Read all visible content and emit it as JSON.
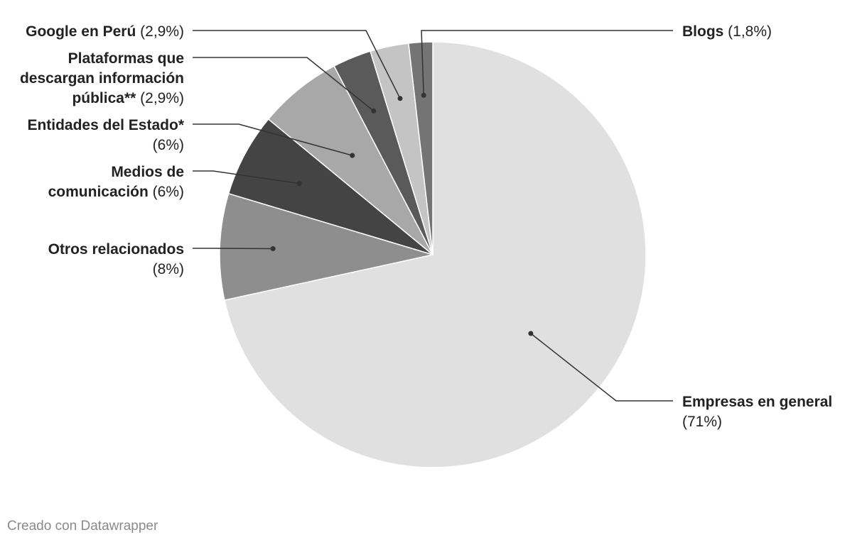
{
  "chart_data": {
    "type": "pie",
    "title": "",
    "start_angle_deg": 0,
    "direction": "counterclockwise",
    "slices": [
      {
        "name": "Empresas en general",
        "label_lines": [
          "Empresas en general"
        ],
        "pct_label": "(71%)",
        "pct_inline": false,
        "value": 71,
        "color": "#e0e0e0"
      },
      {
        "name": "Otros relacionados",
        "label_lines": [
          "Otros relacionados"
        ],
        "pct_label": "(8%)",
        "pct_inline": false,
        "value": 8,
        "color": "#8e8e8e"
      },
      {
        "name": "Medios de comunicación",
        "label_lines": [
          "Medios de",
          "comunicación"
        ],
        "pct_label": "(6%)",
        "pct_inline": true,
        "value": 6.3,
        "color": "#444444"
      },
      {
        "name": "Entidades del Estado*",
        "label_lines": [
          "Entidades del Estado*"
        ],
        "pct_label": "(6%)",
        "pct_inline": false,
        "value": 6.3,
        "color": "#a8a8a8"
      },
      {
        "name": "Plataformas que descargan información pública**",
        "label_lines": [
          "Plataformas que",
          "descargan información",
          "pública**"
        ],
        "pct_label": "(2,9%)",
        "pct_inline": true,
        "value": 2.9,
        "color": "#5a5a5a"
      },
      {
        "name": "Google en Perú",
        "label_lines": [
          "Google en Perú"
        ],
        "pct_label": "(2,9%)",
        "pct_inline": true,
        "value": 2.9,
        "color": "#c4c4c4"
      },
      {
        "name": "Blogs",
        "label_lines": [
          "Blogs"
        ],
        "pct_label": "(1,8%)",
        "pct_inline": true,
        "value": 1.8,
        "color": "#747474"
      }
    ]
  },
  "footer": {
    "credit": "Creado con Datawrapper"
  }
}
